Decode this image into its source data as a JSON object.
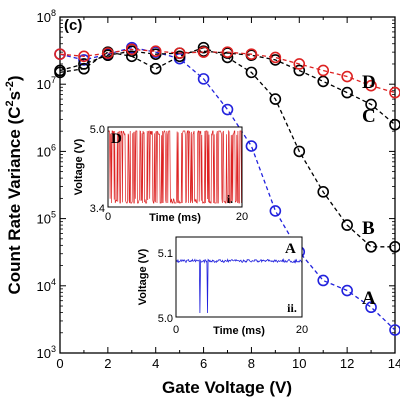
{
  "chart_data": {
    "type": "line",
    "panel_label": "(c)",
    "xlabel": "Gate Voltage (V)",
    "ylabel": "Count Rate Variance (C2s-2)",
    "ylabel_parts": {
      "base": "Count Rate Variance (C",
      "sup1": "2",
      "mid": "s",
      "sup2": "-2",
      "end": ")"
    },
    "xlim": [
      0,
      14
    ],
    "ylim_log10": [
      3,
      8
    ],
    "y_scale": "log",
    "x_ticks": [
      0,
      2,
      4,
      6,
      8,
      10,
      12,
      14
    ],
    "x_tick_labels": [
      "0",
      "2",
      "4",
      "6",
      "8",
      "10",
      "12",
      "14"
    ],
    "y_tick_exponents": [
      3,
      4,
      5,
      6,
      7,
      8
    ],
    "y_tick_base": "10",
    "series": [
      {
        "name": "A",
        "color": "#2222dd",
        "x": [
          0,
          1,
          2,
          3,
          4,
          5,
          6,
          7,
          8,
          9,
          10,
          11,
          12,
          13,
          14
        ],
        "y": [
          28000000.0,
          23000000.0,
          28000000.0,
          35000000.0,
          30000000.0,
          24000000.0,
          12000000.0,
          4200000.0,
          1200000.0,
          130000.0,
          32000.0,
          12000.0,
          8500.0,
          4800.0,
          2200.0
        ]
      },
      {
        "name": "B",
        "color": "#000000",
        "x": [
          0,
          1,
          2,
          3,
          4,
          5,
          6,
          7,
          8,
          9,
          10,
          11,
          12,
          13,
          14
        ],
        "y": [
          15000000.0,
          17000000.0,
          30000000.0,
          26000000.0,
          17000000.0,
          26000000.0,
          35000000.0,
          25000000.0,
          15000000.0,
          6000000.0,
          1000000.0,
          250000.0,
          80000.0,
          38000.0,
          38000.0
        ]
      },
      {
        "name": "C",
        "color": "#000000",
        "x": [
          0,
          1,
          2,
          3,
          4,
          5,
          6,
          7,
          8,
          9,
          10,
          11,
          12,
          13,
          14
        ],
        "y": [
          16000000.0,
          20000000.0,
          27000000.0,
          31000000.0,
          28000000.0,
          29000000.0,
          31000000.0,
          29000000.0,
          27000000.0,
          23000000.0,
          16000000.0,
          11000000.0,
          7500000.0,
          5000000.0,
          2500000.0
        ]
      },
      {
        "name": "D",
        "color": "#dd2222",
        "x": [
          0,
          1,
          2,
          3,
          4,
          5,
          6,
          7,
          8,
          9,
          10,
          11,
          12,
          13,
          14
        ],
        "y": [
          28000000.0,
          26000000.0,
          29000000.0,
          33000000.0,
          31000000.0,
          29000000.0,
          30000000.0,
          30000000.0,
          28000000.0,
          25000000.0,
          20000000.0,
          16000000.0,
          13000000.0,
          9500000.0,
          7500000.0
        ]
      }
    ],
    "insets": [
      {
        "id": "i.",
        "tag": "D",
        "color": "#dd2222",
        "xlabel": "Time (ms)",
        "ylabel": "Voltage (V)",
        "xlim": [
          0,
          20
        ],
        "ylim": [
          3.4,
          5.0
        ],
        "x_tick_labels": [
          "0",
          "20"
        ],
        "y_tick_labels": [
          "3.4",
          "5.0"
        ],
        "signal": "random telegraph noise switching between 3.4 V and 5.0 V"
      },
      {
        "id": "ii.",
        "tag": "A",
        "color": "#2222dd",
        "xlabel": "Time (ms)",
        "ylabel": "Voltage (V)",
        "xlim": [
          0,
          20
        ],
        "ylim": [
          5.0,
          5.1
        ],
        "x_tick_labels": [
          "0",
          "20"
        ],
        "y_tick_labels": [
          "5.0",
          "5.1"
        ],
        "signal": "steady trace near 5.08 V with two brief downward spikes"
      }
    ]
  }
}
